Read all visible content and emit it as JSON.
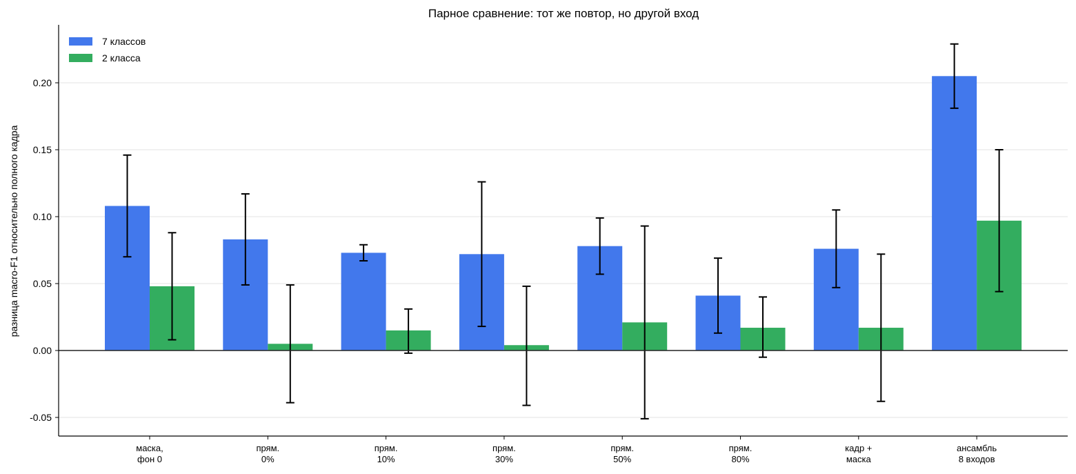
{
  "chart_data": {
    "type": "bar",
    "title": "Парное сравнение: тот же повтор, но другой вход",
    "xlabel": "",
    "ylabel": "разница macro-F1 относительно полного кадра",
    "ylim": [
      -0.064,
      0.243
    ],
    "yticks": [
      -0.05,
      0.0,
      0.05,
      0.1,
      0.15,
      0.2
    ],
    "ytick_labels": [
      "-0.05",
      "0.00",
      "0.05",
      "0.10",
      "0.15",
      "0.20"
    ],
    "grid": "horizontal",
    "legend_position": "top-left",
    "categories": [
      [
        "маска,",
        "фон 0"
      ],
      [
        "прям.",
        "0%"
      ],
      [
        "прям.",
        "10%"
      ],
      [
        "прям.",
        "30%"
      ],
      [
        "прям.",
        "50%"
      ],
      [
        "прям.",
        "80%"
      ],
      [
        "кадр +",
        "маска"
      ],
      [
        "ансамбль",
        "8 входов"
      ]
    ],
    "series": [
      {
        "name": "7 классов",
        "color": "#4278ec",
        "values": [
          0.108,
          0.083,
          0.073,
          0.072,
          0.078,
          0.041,
          0.076,
          0.205
        ],
        "err_low": [
          0.07,
          0.049,
          0.067,
          0.018,
          0.057,
          0.013,
          0.047,
          0.181
        ],
        "err_high": [
          0.146,
          0.117,
          0.079,
          0.126,
          0.099,
          0.069,
          0.105,
          0.229
        ]
      },
      {
        "name": "2 класса",
        "color": "#33ad5f",
        "values": [
          0.048,
          0.005,
          0.015,
          0.004,
          0.021,
          0.017,
          0.017,
          0.097
        ],
        "err_low": [
          0.008,
          -0.039,
          -0.002,
          -0.041,
          -0.051,
          -0.005,
          -0.038,
          0.044
        ],
        "err_high": [
          0.088,
          0.049,
          0.031,
          0.048,
          0.093,
          0.04,
          0.072,
          0.15
        ]
      }
    ]
  }
}
